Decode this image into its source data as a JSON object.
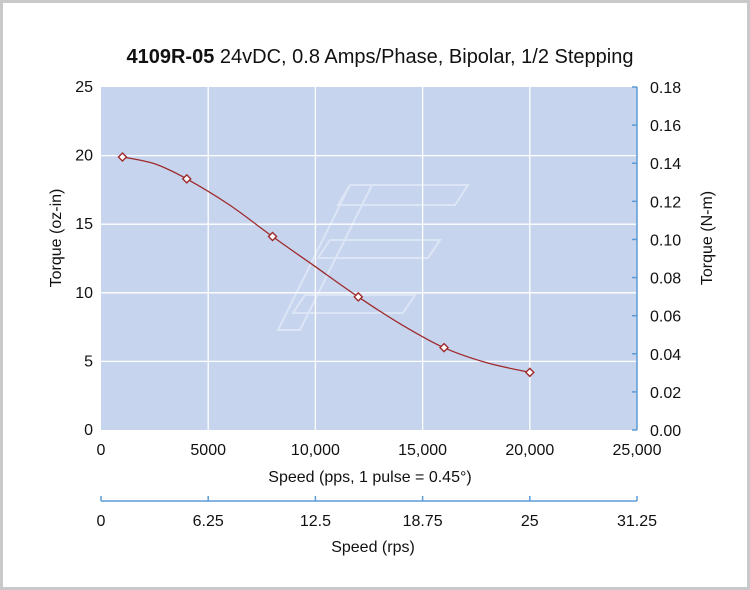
{
  "chart_data": {
    "type": "line",
    "title": {
      "model": "4109R-05",
      "rest": " 24vDC, 0.8 Amps/Phase, Bipolar, 1/2 Stepping"
    },
    "xlabel": "Speed (pps, 1 pulse = 0.45°)",
    "ylabel_left": "Torque (oz-in)",
    "ylabel_right": "Torque (N-m)",
    "x2label": "Speed (rps)",
    "xlim": [
      0,
      25000
    ],
    "ylim_left": [
      0,
      25
    ],
    "ylim_right": [
      0,
      0.18
    ],
    "x2lim": [
      0,
      31.25
    ],
    "x_ticks": [
      {
        "value": 0,
        "label": "0"
      },
      {
        "value": 5000,
        "label": "5000"
      },
      {
        "value": 10000,
        "label": "10,000"
      },
      {
        "value": 15000,
        "label": "15,000"
      },
      {
        "value": 20000,
        "label": "20,000"
      },
      {
        "value": 25000,
        "label": "25,000"
      }
    ],
    "y_left_ticks": [
      {
        "value": 0,
        "label": "0"
      },
      {
        "value": 5,
        "label": "5"
      },
      {
        "value": 10,
        "label": "10"
      },
      {
        "value": 15,
        "label": "15"
      },
      {
        "value": 20,
        "label": "20"
      },
      {
        "value": 25,
        "label": "25"
      }
    ],
    "y_right_ticks": [
      {
        "value": 0.0,
        "label": "0.00"
      },
      {
        "value": 0.02,
        "label": "0.02"
      },
      {
        "value": 0.04,
        "label": "0.04"
      },
      {
        "value": 0.06,
        "label": "0.06"
      },
      {
        "value": 0.08,
        "label": "0.08"
      },
      {
        "value": 0.1,
        "label": "0.10"
      },
      {
        "value": 0.12,
        "label": "0.12"
      },
      {
        "value": 0.14,
        "label": "0.14"
      },
      {
        "value": 0.16,
        "label": "0.16"
      },
      {
        "value": 0.18,
        "label": "0.18"
      }
    ],
    "x2_ticks": [
      {
        "value": 0,
        "label": "0"
      },
      {
        "value": 6.25,
        "label": "6.25"
      },
      {
        "value": 12.5,
        "label": "12.5"
      },
      {
        "value": 18.75,
        "label": "18.75"
      },
      {
        "value": 25,
        "label": "25"
      },
      {
        "value": 31.25,
        "label": "31.25"
      }
    ],
    "series": [
      {
        "name": "Torque",
        "x": [
          1000,
          4000,
          8000,
          12000,
          16000,
          20000
        ],
        "y": [
          19.9,
          18.3,
          14.1,
          9.7,
          6.0,
          4.2
        ]
      }
    ],
    "curve": {
      "x": [
        1000,
        2500,
        4000,
        6000,
        8000,
        10000,
        12000,
        14000,
        16000,
        18000,
        20000
      ],
      "y": [
        19.9,
        19.4,
        18.3,
        16.4,
        14.1,
        11.9,
        9.7,
        7.7,
        6.0,
        4.9,
        4.2
      ]
    },
    "grid": true,
    "colors": {
      "plot_bg": "#c7d4ee",
      "grid": "#ffffff",
      "line": "#9e2a2b",
      "marker_fill": "#ffffff",
      "axis": "#5b9bd5",
      "text": "#111111",
      "watermark": "#dce5f5"
    }
  }
}
